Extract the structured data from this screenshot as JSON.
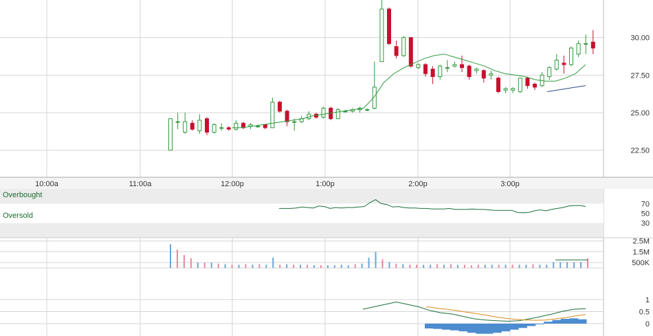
{
  "chart_data": [
    {
      "type": "candlestick",
      "panel": "price",
      "x_axis": {
        "labels": [
          "10:00a",
          "11:00a",
          "12:00p",
          "1:00p",
          "2:00p",
          "3:00p"
        ]
      },
      "y_axis": {
        "ticks": [
          "30.00",
          "27.50",
          "25.00",
          "22.50"
        ],
        "range": [
          20.7,
          32.5
        ]
      },
      "candles": [
        [
          22.5,
          24.6,
          22.5,
          24.6
        ],
        [
          24.4,
          24.4,
          23.9,
          25.0
        ],
        [
          23.7,
          24.4,
          23.6,
          25.0
        ],
        [
          24.3,
          23.9,
          23.8,
          24.5
        ],
        [
          23.8,
          24.5,
          23.6,
          24.9
        ],
        [
          24.6,
          23.7,
          23.5,
          24.7
        ],
        [
          23.7,
          24.2,
          23.6,
          24.3
        ],
        [
          24.0,
          24.0,
          23.8,
          24.3
        ],
        [
          24.0,
          23.9,
          23.8,
          24.1
        ],
        [
          23.9,
          24.3,
          23.8,
          24.5
        ],
        [
          24.3,
          24.0,
          23.9,
          24.4
        ],
        [
          24.1,
          24.2,
          23.9,
          24.3
        ],
        [
          24.1,
          24.1,
          24.0,
          24.2
        ],
        [
          24.2,
          24.0,
          23.9,
          24.1
        ],
        [
          24.0,
          25.7,
          24.0,
          26.0
        ],
        [
          25.7,
          25.1,
          25.0,
          25.8
        ],
        [
          25.1,
          24.4,
          24.1,
          25.2
        ],
        [
          24.4,
          24.4,
          23.8,
          24.6
        ],
        [
          24.4,
          24.6,
          24.3,
          24.8
        ],
        [
          24.6,
          24.9,
          24.5,
          25.1
        ],
        [
          24.9,
          24.7,
          24.6,
          25.0
        ],
        [
          24.7,
          25.3,
          24.6,
          25.4
        ],
        [
          25.3,
          24.6,
          24.5,
          25.4
        ],
        [
          24.6,
          25.2,
          24.6,
          25.3
        ],
        [
          25.1,
          25.1,
          25.0,
          25.2
        ],
        [
          25.1,
          25.2,
          25.0,
          25.3
        ],
        [
          25.2,
          25.3,
          25.0,
          25.4
        ],
        [
          25.2,
          25.2,
          25.1,
          25.3
        ],
        [
          25.3,
          26.7,
          25.2,
          28.4
        ],
        [
          28.4,
          31.9,
          28.5,
          32.5
        ],
        [
          31.9,
          29.6,
          29.5,
          32.0
        ],
        [
          29.4,
          28.8,
          28.6,
          29.8
        ],
        [
          28.8,
          30.0,
          28.7,
          30.1
        ],
        [
          30.0,
          28.1,
          28.0,
          30.0
        ],
        [
          28.0,
          28.2,
          27.9,
          28.3
        ],
        [
          28.2,
          27.6,
          27.4,
          28.3
        ],
        [
          27.9,
          27.4,
          26.9,
          28.1
        ],
        [
          27.4,
          28.1,
          27.2,
          28.2
        ],
        [
          28.0,
          28.0,
          27.7,
          28.5
        ],
        [
          28.1,
          28.2,
          28.0,
          28.4
        ],
        [
          28.2,
          28.0,
          27.7,
          28.8
        ],
        [
          28.1,
          27.4,
          27.2,
          28.2
        ],
        [
          27.8,
          27.9,
          27.6,
          28.0
        ],
        [
          27.8,
          27.3,
          27.0,
          27.9
        ],
        [
          27.5,
          27.6,
          27.2,
          27.8
        ],
        [
          27.3,
          26.4,
          26.3,
          27.4
        ],
        [
          26.5,
          26.6,
          26.3,
          26.7
        ],
        [
          26.5,
          26.6,
          26.3,
          26.7
        ],
        [
          26.4,
          27.3,
          26.3,
          27.3
        ],
        [
          27.3,
          26.8,
          26.6,
          27.4
        ],
        [
          26.9,
          26.7,
          26.5,
          27.0
        ],
        [
          26.8,
          27.5,
          26.7,
          27.7
        ],
        [
          27.4,
          28.0,
          27.2,
          28.1
        ],
        [
          27.9,
          28.5,
          27.8,
          28.9
        ],
        [
          28.3,
          28.2,
          27.6,
          28.8
        ],
        [
          28.2,
          29.3,
          28.1,
          29.4
        ],
        [
          28.9,
          29.6,
          28.7,
          29.8
        ],
        [
          29.6,
          29.6,
          28.9,
          30.2
        ],
        [
          29.7,
          29.3,
          28.9,
          30.5
        ]
      ],
      "moving_average_green": [
        24.0,
        24.0,
        24.1,
        24.2,
        24.3,
        24.4,
        24.5,
        24.6,
        24.8,
        24.9,
        25.0,
        25.1,
        25.2,
        25.3,
        26.0,
        27.0,
        27.6,
        28.0,
        28.3,
        28.6,
        28.8,
        28.9,
        28.7,
        28.5,
        28.3,
        28.1,
        27.8,
        27.6,
        27.5,
        27.4,
        27.2,
        27.1,
        27.1,
        27.3,
        27.6,
        28.2
      ],
      "moving_average_blue": [
        26.4,
        26.5,
        26.6,
        26.7,
        26.8
      ]
    },
    {
      "type": "line",
      "panel": "rsi",
      "band_labels": {
        "upper": "Overbought",
        "lower": "Oversold"
      },
      "y_axis": {
        "ticks": [
          "70",
          "50",
          "30"
        ]
      },
      "values": [
        60,
        60,
        60,
        61,
        63,
        62,
        61,
        65,
        64,
        60,
        62,
        61,
        62,
        62,
        63,
        64,
        72,
        78,
        70,
        68,
        63,
        64,
        62,
        61,
        61,
        60,
        60,
        59,
        59,
        59,
        60,
        58,
        58,
        58,
        59,
        58,
        58,
        57,
        56,
        56,
        56,
        56,
        52,
        51,
        52,
        55,
        57,
        55,
        58,
        60,
        62,
        65,
        66,
        66,
        64
      ]
    },
    {
      "type": "bar",
      "panel": "volume",
      "y_axis": {
        "ticks": [
          "2.5M",
          "1.5M",
          "500K"
        ],
        "max": 2.8
      },
      "values_millions": [
        2.2,
        1.7,
        1.2,
        0.9,
        0.5,
        0.5,
        0.5,
        0.4,
        0.35,
        0.3,
        0.3,
        0.35,
        0.3,
        0.35,
        0.3,
        0.95,
        0.3,
        0.35,
        0.3,
        0.3,
        0.3,
        0.25,
        0.25,
        0.25,
        0.25,
        0.3,
        0.25,
        0.35,
        0.4,
        0.95,
        1.5,
        0.8,
        0.55,
        0.4,
        0.35,
        0.3,
        0.3,
        0.3,
        0.3,
        0.35,
        0.3,
        0.35,
        0.3,
        0.3,
        0.25,
        0.3,
        0.3,
        0.3,
        0.3,
        0.3,
        0.3,
        0.3,
        0.3,
        0.35,
        0.3,
        0.3,
        0.55,
        0.55,
        0.55,
        0.55,
        0.55,
        0.9
      ],
      "up": [
        true,
        false,
        false,
        false,
        true,
        false,
        true,
        false,
        true,
        false,
        true,
        false,
        true,
        false,
        true,
        true,
        false,
        true,
        false,
        true,
        false,
        true,
        false,
        true,
        true,
        true,
        true,
        false,
        true,
        true,
        true,
        false,
        true,
        false,
        true,
        false,
        false,
        true,
        true,
        false,
        true,
        false,
        true,
        false,
        false,
        false,
        true,
        true,
        false,
        true,
        false,
        true,
        true,
        false,
        true,
        true,
        true,
        true,
        true,
        true,
        true,
        false
      ],
      "average_line_millions": 0.75
    },
    {
      "type": "line",
      "panel": "stochastic",
      "y_axis": {
        "ticks": [
          "1",
          "0.5",
          "0"
        ]
      },
      "series": [
        {
          "values": [
            0.6,
            0.7,
            0.8,
            0.9,
            0.8,
            0.7,
            0.55,
            0.45,
            0.4,
            0.3,
            0.2,
            0.15,
            0.12,
            0.1,
            0.12,
            0.2,
            0.3,
            0.4,
            0.52,
            0.6,
            0.62
          ]
        },
        {
          "values": [
            0.7,
            0.65,
            0.6,
            0.55,
            0.48,
            0.42,
            0.35,
            0.28,
            0.22,
            0.18,
            0.15,
            0.14,
            0.15,
            0.2,
            0.25,
            0.32,
            0.38
          ]
        }
      ],
      "histogram": [
        -0.2,
        -0.22,
        -0.25,
        -0.28,
        -0.32,
        -0.38,
        -0.42,
        -0.42,
        -0.38,
        -0.32,
        -0.25,
        -0.18,
        -0.1,
        0.0,
        0.08,
        0.15,
        0.2,
        0.22,
        0.18
      ]
    }
  ]
}
